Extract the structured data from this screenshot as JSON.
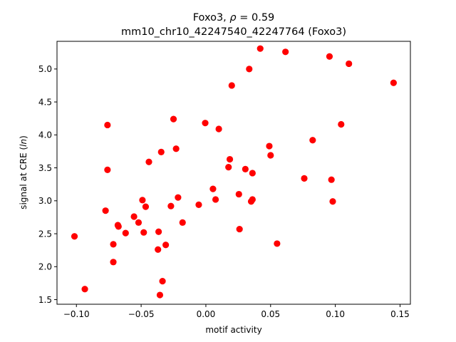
{
  "chart_data": {
    "type": "scatter",
    "title_line1": "Foxo3, ρ = 0.59",
    "title_line2": "mm10_chr10_42247540_42247764 (Foxo3)",
    "xlabel": "motif activity",
    "ylabel": "signal at CRE (ln)",
    "xlim": [
      -0.115,
      0.158
    ],
    "ylim": [
      1.43,
      5.42
    ],
    "xticks": [
      -0.1,
      -0.05,
      0.0,
      0.05,
      0.1,
      0.15
    ],
    "xtick_labels": [
      "−0.10",
      "−0.05",
      "0.00",
      "0.05",
      "0.10",
      "0.15"
    ],
    "yticks": [
      1.5,
      2.0,
      2.5,
      3.0,
      3.5,
      4.0,
      4.5,
      5.0
    ],
    "ytick_labels": [
      "1.5",
      "2.0",
      "2.5",
      "3.0",
      "3.5",
      "4.0",
      "4.5",
      "5.0"
    ],
    "grid": false,
    "marker_color": "#ff0000",
    "points": [
      {
        "x": -0.1015,
        "y": 2.46
      },
      {
        "x": -0.0935,
        "y": 1.66
      },
      {
        "x": -0.0775,
        "y": 2.85
      },
      {
        "x": -0.076,
        "y": 4.15
      },
      {
        "x": -0.076,
        "y": 3.47
      },
      {
        "x": -0.0715,
        "y": 2.34
      },
      {
        "x": -0.0715,
        "y": 2.07
      },
      {
        "x": -0.068,
        "y": 2.63
      },
      {
        "x": -0.0675,
        "y": 2.61
      },
      {
        "x": -0.062,
        "y": 2.51
      },
      {
        "x": -0.0555,
        "y": 2.76
      },
      {
        "x": -0.052,
        "y": 2.67
      },
      {
        "x": -0.049,
        "y": 3.01
      },
      {
        "x": -0.048,
        "y": 2.52
      },
      {
        "x": -0.0465,
        "y": 2.91
      },
      {
        "x": -0.044,
        "y": 3.59
      },
      {
        "x": -0.037,
        "y": 2.26
      },
      {
        "x": -0.0365,
        "y": 2.53
      },
      {
        "x": -0.0355,
        "y": 1.57
      },
      {
        "x": -0.0345,
        "y": 3.74
      },
      {
        "x": -0.0335,
        "y": 1.78
      },
      {
        "x": -0.031,
        "y": 2.33
      },
      {
        "x": -0.027,
        "y": 2.92
      },
      {
        "x": -0.025,
        "y": 4.24
      },
      {
        "x": -0.023,
        "y": 3.79
      },
      {
        "x": -0.0215,
        "y": 3.05
      },
      {
        "x": -0.018,
        "y": 2.67
      },
      {
        "x": -0.0055,
        "y": 2.94
      },
      {
        "x": -0.0005,
        "y": 4.18
      },
      {
        "x": 0.0055,
        "y": 3.18
      },
      {
        "x": 0.0075,
        "y": 3.02
      },
      {
        "x": 0.01,
        "y": 4.09
      },
      {
        "x": 0.0175,
        "y": 3.51
      },
      {
        "x": 0.0185,
        "y": 3.63
      },
      {
        "x": 0.02,
        "y": 4.75
      },
      {
        "x": 0.0255,
        "y": 3.1
      },
      {
        "x": 0.026,
        "y": 2.57
      },
      {
        "x": 0.0305,
        "y": 3.48
      },
      {
        "x": 0.0335,
        "y": 5.0
      },
      {
        "x": 0.035,
        "y": 2.99
      },
      {
        "x": 0.036,
        "y": 3.42
      },
      {
        "x": 0.036,
        "y": 3.02
      },
      {
        "x": 0.042,
        "y": 5.31
      },
      {
        "x": 0.049,
        "y": 3.83
      },
      {
        "x": 0.05,
        "y": 3.69
      },
      {
        "x": 0.055,
        "y": 2.35
      },
      {
        "x": 0.0615,
        "y": 5.26
      },
      {
        "x": 0.076,
        "y": 3.34
      },
      {
        "x": 0.0825,
        "y": 3.92
      },
      {
        "x": 0.0955,
        "y": 5.19
      },
      {
        "x": 0.097,
        "y": 3.32
      },
      {
        "x": 0.098,
        "y": 2.99
      },
      {
        "x": 0.1045,
        "y": 4.16
      },
      {
        "x": 0.1105,
        "y": 5.08
      },
      {
        "x": 0.145,
        "y": 4.79
      }
    ]
  }
}
